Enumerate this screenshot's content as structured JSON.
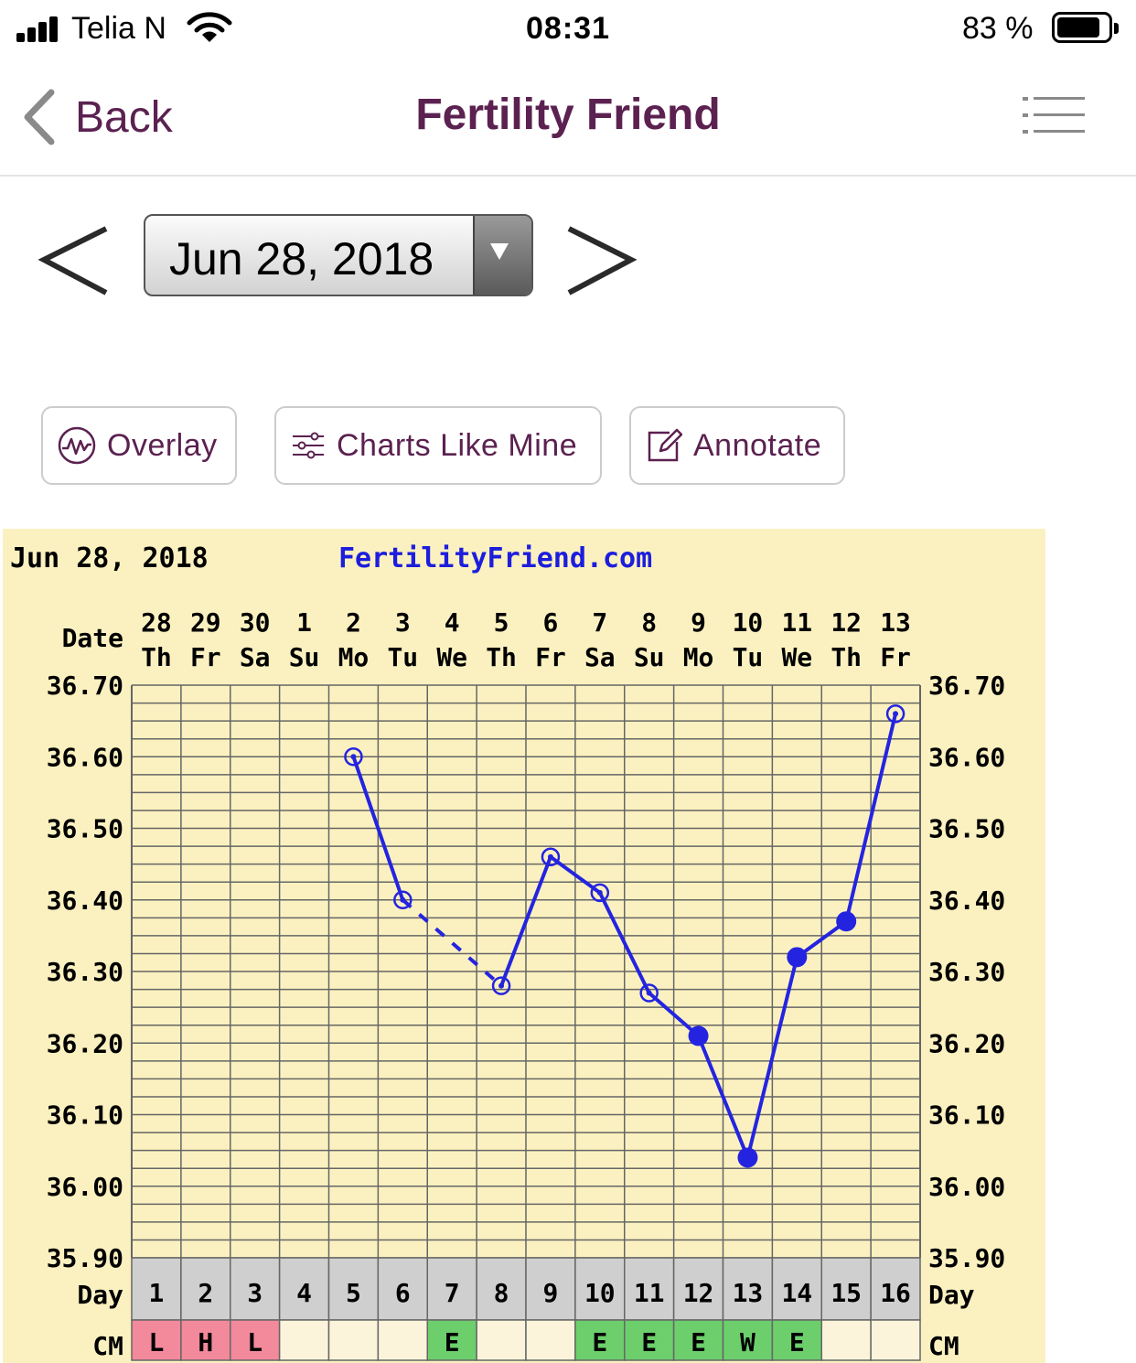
{
  "status_bar": {
    "carrier": "Telia N",
    "time": "08:31",
    "battery": "83 %"
  },
  "nav": {
    "back_label": "Back",
    "title": "Fertility Friend"
  },
  "date_selector": {
    "value": "Jun 28, 2018"
  },
  "actions": {
    "overlay": "Overlay",
    "charts_like_mine": "Charts Like Mine",
    "annotate": "Annotate"
  },
  "chart_data": {
    "type": "line",
    "date_label": "Jun 28, 2018",
    "site": "FertilityFriend.com",
    "row_labels": {
      "date": "Date",
      "day": "Day",
      "cm": "CM"
    },
    "x_dates": [
      "28",
      "29",
      "30",
      "1",
      "2",
      "3",
      "4",
      "5",
      "6",
      "7",
      "8",
      "9",
      "10",
      "11",
      "12",
      "13"
    ],
    "x_weekdays": [
      "Th",
      "Fr",
      "Sa",
      "Su",
      "Mo",
      "Tu",
      "We",
      "Th",
      "Fr",
      "Sa",
      "Su",
      "Mo",
      "Tu",
      "We",
      "Th",
      "Fr"
    ],
    "cycle_days": [
      "1",
      "2",
      "3",
      "4",
      "5",
      "6",
      "7",
      "8",
      "9",
      "10",
      "11",
      "12",
      "13",
      "14",
      "15",
      "16"
    ],
    "cm": [
      "L",
      "H",
      "L",
      "",
      "",
      "",
      "E",
      "",
      "",
      "E",
      "E",
      "E",
      "W",
      "E",
      "",
      ""
    ],
    "y_ticks": [
      "36.70",
      "36.60",
      "36.50",
      "36.40",
      "36.30",
      "36.20",
      "36.10",
      "36.00",
      "35.90"
    ],
    "ylim": [
      35.9,
      36.7
    ],
    "series": [
      {
        "values": [
          null,
          null,
          null,
          null,
          36.6,
          36.4,
          null,
          36.28,
          36.46,
          36.41,
          36.27,
          36.21,
          36.04,
          36.32,
          36.37,
          36.66
        ],
        "marker": [
          "",
          "",
          "",
          "",
          "open",
          "open",
          "",
          "open",
          "open",
          "open",
          "open",
          "filled",
          "filled",
          "filled",
          "filled",
          "open"
        ]
      }
    ],
    "dashed_gaps": [
      [
        5,
        7
      ]
    ],
    "colors": {
      "background": "#fbf1c0",
      "line": "#2424e0",
      "grid": "#666666",
      "day_row": "#cfcfcf",
      "cm_L": "#f28a9c",
      "cm_H": "#f28a9c",
      "cm_E": "#6ccf6c",
      "cm_W": "#6ccf6c",
      "cm_empty": "#fcf4da"
    }
  }
}
